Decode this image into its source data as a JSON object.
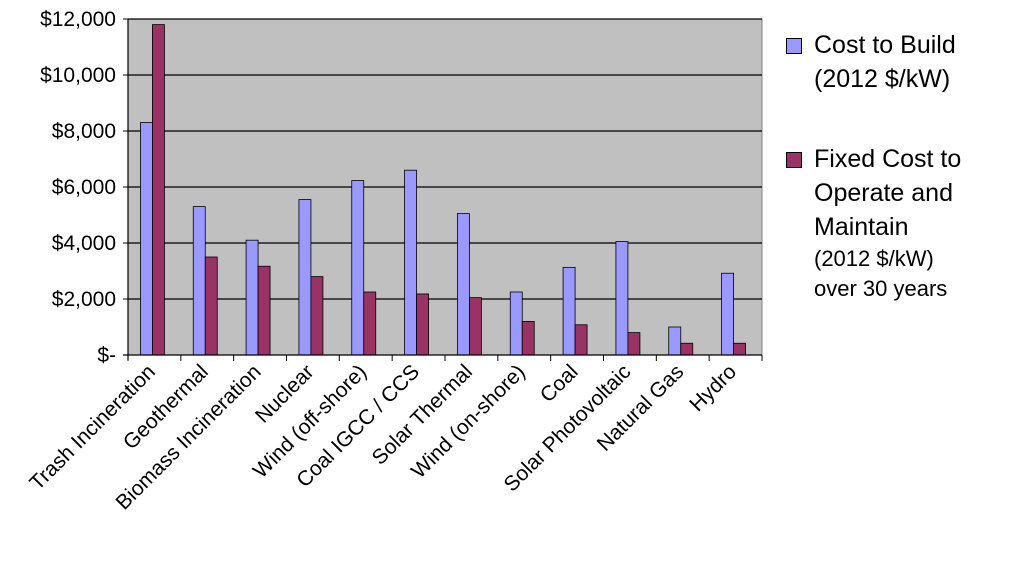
{
  "chart_data": {
    "type": "bar",
    "title": "",
    "xlabel": "",
    "ylabel": "",
    "ylim": [
      0,
      12000
    ],
    "yticks": [
      0,
      2000,
      4000,
      6000,
      8000,
      10000,
      12000
    ],
    "ytick_labels": [
      "$-",
      "$2,000",
      "$4,000",
      "$6,000",
      "$8,000",
      "$10,000",
      "$12,000"
    ],
    "grid": true,
    "legend_position": "right",
    "categories": [
      "Trash Incineration",
      "Geothermal",
      "Biomass Incineration",
      "Nuclear",
      "Wind (off-shore)",
      "Coal IGCC / CCS",
      "Solar Thermal",
      "Wind (on-shore)",
      "Coal",
      "Solar Photovoltaic",
      "Natural Gas",
      "Hydro"
    ],
    "series": [
      {
        "name": "Cost to Build",
        "unit": "(2012 $/kW)",
        "color": "#9999ff",
        "values": [
          8300,
          5300,
          4100,
          5550,
          6230,
          6600,
          5050,
          2250,
          3130,
          4050,
          1000,
          2920
        ]
      },
      {
        "name": "Fixed Cost to\nOperate and\nMaintain",
        "unit": "(2012 $/kW)\nover 30 years",
        "color": "#993366",
        "values": [
          11800,
          3500,
          3170,
          2800,
          2250,
          2180,
          2050,
          1200,
          1080,
          800,
          420,
          420
        ]
      }
    ],
    "plot_background": "#c0c0c0"
  }
}
